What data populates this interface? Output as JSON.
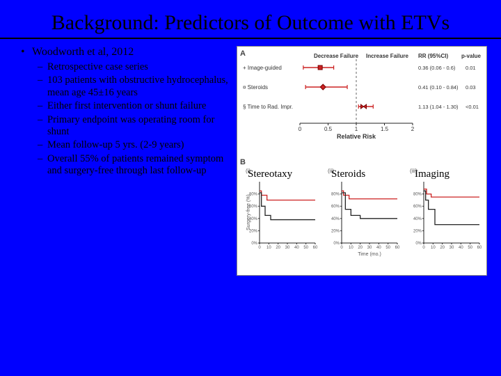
{
  "title": "Background: Predictors of Outcome with ETVs",
  "bullet_main": "Woodworth et al, 2012",
  "sub_bullets": [
    "Retrospective case series",
    "103 patients with obstructive hydrocephalus, mean age 45±16 years",
    "Either first intervention or shunt failure",
    "Primary endpoint was operating room for shunt",
    "Mean follow-up 5 yrs. (2-9 years)",
    "Overall 55% of patients remained symptom and surgery-free through last follow-up"
  ],
  "forest": {
    "panel_label": "A",
    "header_decrease": "Decrease Failure",
    "header_increase": "Increase Failure",
    "header_rr": "RR (95%CI)",
    "header_p": "p-value",
    "xaxis_label": "Relative Risk",
    "xticks": [
      "0",
      "0.5",
      "1",
      "1.5",
      "2"
    ],
    "null_line_x": 1,
    "rows": [
      {
        "label": "+ Image-guided",
        "marker": "square",
        "est": 0.36,
        "lo": 0.06,
        "hi": 0.6,
        "rr": "0.36 (0.06 - 0.6)",
        "p": "0.01"
      },
      {
        "label": "¤ Steroids",
        "marker": "diamond",
        "est": 0.41,
        "lo": 0.1,
        "hi": 0.84,
        "rr": "0.41 (0.10 - 0.84)",
        "p": "0.03"
      },
      {
        "label": "§ Time to Rad. Impr.",
        "marker": "bowtie",
        "est": 1.13,
        "lo": 1.04,
        "hi": 1.3,
        "rr": "1.13 (1.04 - 1.30)",
        "p": "<0.01"
      }
    ],
    "colors": {
      "error": "#c22",
      "axis": "#222",
      "grid": "#888"
    }
  },
  "km": {
    "panel_label": "B",
    "x_ticks": [
      "0",
      "10",
      "20",
      "30",
      "40",
      "50",
      "60"
    ],
    "y_ticks": [
      "0%",
      "20%",
      "40%",
      "60%",
      "80%"
    ],
    "y_axis_label": "Surgery-free (%)",
    "x_axis_label": "Time (mo.)",
    "panels": [
      {
        "roman": "(i)",
        "overlay": "Stereotaxy",
        "lines": [
          {
            "color": "#c22",
            "pts": [
              [
                0,
                0.85
              ],
              [
                2,
                0.85
              ],
              [
                2,
                0.78
              ],
              [
                8,
                0.78
              ],
              [
                8,
                0.7
              ],
              [
                30,
                0.7
              ],
              [
                60,
                0.7
              ]
            ]
          },
          {
            "color": "#222",
            "pts": [
              [
                0,
                0.82
              ],
              [
                2,
                0.82
              ],
              [
                2,
                0.6
              ],
              [
                6,
                0.6
              ],
              [
                6,
                0.45
              ],
              [
                12,
                0.45
              ],
              [
                12,
                0.38
              ],
              [
                60,
                0.38
              ]
            ]
          }
        ]
      },
      {
        "roman": "(ii)",
        "overlay": "Steroids",
        "lines": [
          {
            "color": "#c22",
            "pts": [
              [
                0,
                0.85
              ],
              [
                2,
                0.85
              ],
              [
                2,
                0.78
              ],
              [
                8,
                0.78
              ],
              [
                8,
                0.72
              ],
              [
                30,
                0.72
              ],
              [
                60,
                0.72
              ]
            ]
          },
          {
            "color": "#222",
            "pts": [
              [
                0,
                0.82
              ],
              [
                4,
                0.82
              ],
              [
                4,
                0.55
              ],
              [
                10,
                0.55
              ],
              [
                10,
                0.45
              ],
              [
                20,
                0.45
              ],
              [
                20,
                0.4
              ],
              [
                60,
                0.4
              ]
            ]
          }
        ]
      },
      {
        "roman": "(iii)",
        "overlay": "Imaging",
        "lines": [
          {
            "color": "#c22",
            "pts": [
              [
                0,
                0.88
              ],
              [
                3,
                0.88
              ],
              [
                3,
                0.8
              ],
              [
                8,
                0.8
              ],
              [
                8,
                0.75
              ],
              [
                30,
                0.75
              ],
              [
                60,
                0.75
              ]
            ]
          },
          {
            "color": "#222",
            "pts": [
              [
                0,
                0.85
              ],
              [
                2,
                0.85
              ],
              [
                2,
                0.7
              ],
              [
                5,
                0.7
              ],
              [
                5,
                0.55
              ],
              [
                12,
                0.55
              ],
              [
                12,
                0.3
              ],
              [
                60,
                0.3
              ]
            ]
          }
        ]
      }
    ],
    "colors": {
      "axis": "#222"
    }
  }
}
